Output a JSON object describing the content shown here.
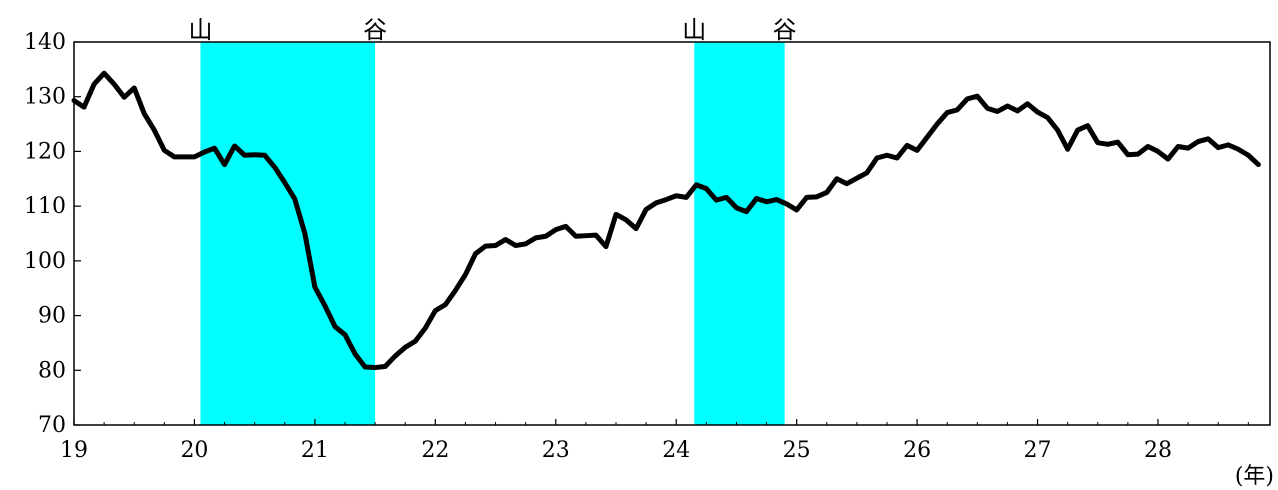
{
  "chart_data": {
    "type": "line",
    "title": "",
    "xlabel": "",
    "ylabel": "",
    "x_unit": "(年)",
    "xlim": [
      19,
      28.93
    ],
    "ylim": [
      70,
      140
    ],
    "yticks": [
      70,
      80,
      90,
      100,
      110,
      120,
      130,
      140
    ],
    "xticks": [
      19,
      20,
      21,
      22,
      23,
      24,
      25,
      26,
      27,
      28
    ],
    "grid": false,
    "legend": "none",
    "band_color": "#00ffff",
    "line_color": "#000000",
    "bands": [
      {
        "start": 20.05,
        "end": 21.5,
        "start_label": "山",
        "end_label": "谷"
      },
      {
        "start": 24.15,
        "end": 24.9,
        "start_label": "山",
        "end_label": "谷"
      }
    ],
    "series": [
      {
        "name": "",
        "x_start": 19.0,
        "x_step": 0.083333,
        "values": [
          129.3,
          128.1,
          132.3,
          134.3,
          132.3,
          129.9,
          131.6,
          126.9,
          123.9,
          120.2,
          119.0,
          119.0,
          119.0,
          119.9,
          120.6,
          117.6,
          121.0,
          119.3,
          119.4,
          119.3,
          117.1,
          114.3,
          111.3,
          105.0,
          95.2,
          91.8,
          88.0,
          86.5,
          83.0,
          80.6,
          80.5,
          80.7,
          82.6,
          84.2,
          85.3,
          87.7,
          90.9,
          92.0,
          94.6,
          97.5,
          101.3,
          102.7,
          102.8,
          103.9,
          102.8,
          103.1,
          104.2,
          104.5,
          105.7,
          106.3,
          104.5,
          104.6,
          104.7,
          102.6,
          108.5,
          107.5,
          105.9,
          109.4,
          110.6,
          111.2,
          111.9,
          111.6,
          113.9,
          113.2,
          111.1,
          111.6,
          109.7,
          109.0,
          111.4,
          110.8,
          111.2,
          110.4,
          109.3,
          111.6,
          111.7,
          112.5,
          115.0,
          114.1,
          115.1,
          116.1,
          118.8,
          119.3,
          118.8,
          121.1,
          120.2,
          122.6,
          125.0,
          127.1,
          127.6,
          129.6,
          130.1,
          127.9,
          127.3,
          128.3,
          127.4,
          128.7,
          127.2,
          126.2,
          123.9,
          120.4,
          123.9,
          124.7,
          121.6,
          121.3,
          121.7,
          119.4,
          119.5,
          120.9,
          120.0,
          118.6,
          120.9,
          120.6,
          121.8,
          122.3,
          120.7,
          121.2,
          120.4,
          119.3,
          117.6
        ]
      }
    ]
  }
}
